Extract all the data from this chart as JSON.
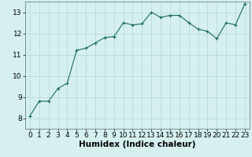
{
  "x": [
    0,
    1,
    2,
    3,
    4,
    5,
    6,
    7,
    8,
    9,
    10,
    11,
    12,
    13,
    14,
    15,
    16,
    17,
    18,
    19,
    20,
    21,
    22,
    23
  ],
  "y": [
    8.1,
    8.8,
    8.8,
    9.4,
    9.65,
    11.2,
    11.3,
    11.55,
    11.8,
    11.85,
    12.5,
    12.4,
    12.45,
    13.0,
    12.75,
    12.85,
    12.85,
    12.5,
    12.2,
    12.1,
    11.75,
    12.5,
    12.4,
    13.4
  ],
  "xlabel": "Humidex (Indice chaleur)",
  "ylim": [
    7.5,
    13.5
  ],
  "xlim": [
    -0.5,
    23.5
  ],
  "yticks": [
    8,
    9,
    10,
    11,
    12,
    13
  ],
  "xticks": [
    0,
    1,
    2,
    3,
    4,
    5,
    6,
    7,
    8,
    9,
    10,
    11,
    12,
    13,
    14,
    15,
    16,
    17,
    18,
    19,
    20,
    21,
    22,
    23
  ],
  "line_color": "#1a6b5a",
  "marker_color": "#1a6b5a",
  "bg_color": "#d6f0f0",
  "grid_color": "#b8dada",
  "tick_fontsize": 6.5,
  "xlabel_fontsize": 7.5
}
